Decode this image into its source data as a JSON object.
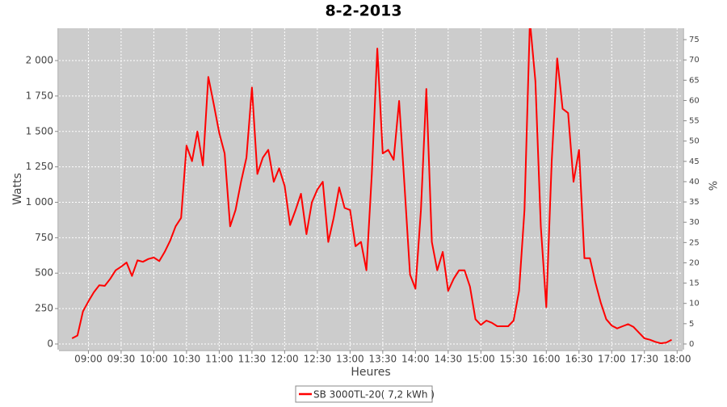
{
  "chart_data": {
    "type": "line",
    "title": "8-2-2013",
    "x_label": "Heures",
    "y_label": "Watts",
    "y2_label": "%",
    "x": [
      "08:45",
      "08:50",
      "08:55",
      "09:00",
      "09:05",
      "09:10",
      "09:15",
      "09:20",
      "09:25",
      "09:30",
      "09:35",
      "09:40",
      "09:45",
      "09:50",
      "09:55",
      "10:00",
      "10:05",
      "10:10",
      "10:15",
      "10:20",
      "10:25",
      "10:30",
      "10:35",
      "10:40",
      "10:45",
      "10:50",
      "10:55",
      "11:00",
      "11:05",
      "11:10",
      "11:15",
      "11:20",
      "11:25",
      "11:30",
      "11:35",
      "11:40",
      "11:45",
      "11:50",
      "11:55",
      "12:00",
      "12:05",
      "12:10",
      "12:15",
      "12:20",
      "12:25",
      "12:30",
      "12:35",
      "12:40",
      "12:45",
      "12:50",
      "12:55",
      "13:00",
      "13:05",
      "13:10",
      "13:15",
      "13:20",
      "13:25",
      "13:30",
      "13:35",
      "13:40",
      "13:45",
      "13:50",
      "13:55",
      "14:00",
      "14:05",
      "14:10",
      "14:15",
      "14:20",
      "14:25",
      "14:30",
      "14:35",
      "14:40",
      "14:45",
      "14:50",
      "14:55",
      "15:00",
      "15:05",
      "15:10",
      "15:15",
      "15:20",
      "15:25",
      "15:30",
      "15:35",
      "15:40",
      "15:45",
      "15:50",
      "15:55",
      "16:00",
      "16:05",
      "16:10",
      "16:15",
      "16:20",
      "16:25",
      "16:30",
      "16:35",
      "16:40",
      "16:45",
      "16:50",
      "16:55",
      "17:00",
      "17:05",
      "17:10",
      "17:15",
      "17:20",
      "17:25",
      "17:30",
      "17:35",
      "17:40",
      "17:45",
      "17:50",
      "17:55"
    ],
    "series": [
      {
        "name": "SB 3000TL-20( 7,2 kWh )",
        "color": "#ff0000",
        "values": [
          40,
          60,
          230,
          300,
          365,
          415,
          410,
          460,
          520,
          545,
          575,
          480,
          590,
          580,
          600,
          610,
          585,
          650,
          730,
          830,
          890,
          1400,
          1290,
          1500,
          1260,
          1885,
          1690,
          1490,
          1345,
          830,
          945,
          1145,
          1315,
          1810,
          1200,
          1315,
          1370,
          1145,
          1240,
          1115,
          840,
          945,
          1060,
          775,
          1000,
          1090,
          1145,
          720,
          890,
          1105,
          960,
          945,
          690,
          720,
          520,
          1200,
          2085,
          1345,
          1370,
          1300,
          1715,
          1115,
          490,
          390,
          945,
          1800,
          720,
          520,
          650,
          375,
          460,
          520,
          520,
          405,
          175,
          135,
          165,
          150,
          125,
          125,
          125,
          165,
          375,
          945,
          2280,
          1855,
          830,
          260,
          1290,
          2015,
          1660,
          1630,
          1145,
          1370,
          605,
          605,
          435,
          290,
          175,
          130,
          110,
          125,
          140,
          120,
          80,
          40,
          30,
          15,
          5,
          10,
          30
        ]
      }
    ],
    "xlim": [
      "08:33",
      "18:05"
    ],
    "xticks": [
      "09:00",
      "09:30",
      "10:00",
      "10:30",
      "11:00",
      "11:30",
      "12:00",
      "12:30",
      "13:00",
      "13:30",
      "14:00",
      "14:30",
      "15:00",
      "15:30",
      "16:00",
      "16:30",
      "17:00",
      "17:30",
      "18:00"
    ],
    "ylim": [
      -40,
      2228
    ],
    "yticks": [
      0,
      250,
      500,
      750,
      {
        "value": 1000,
        "label": "1 000"
      },
      {
        "value": 1250,
        "label": "1 250"
      },
      {
        "value": 1500,
        "label": "1 500"
      },
      {
        "value": 1750,
        "label": "1 750"
      },
      {
        "value": 2000,
        "label": "2 000"
      }
    ],
    "y2lim": [
      -1.4,
      77.8
    ],
    "y2ticks": [
      0,
      5,
      10,
      15,
      20,
      25,
      30,
      35,
      40,
      45,
      50,
      55,
      60,
      65,
      70,
      75
    ],
    "grid": true
  }
}
